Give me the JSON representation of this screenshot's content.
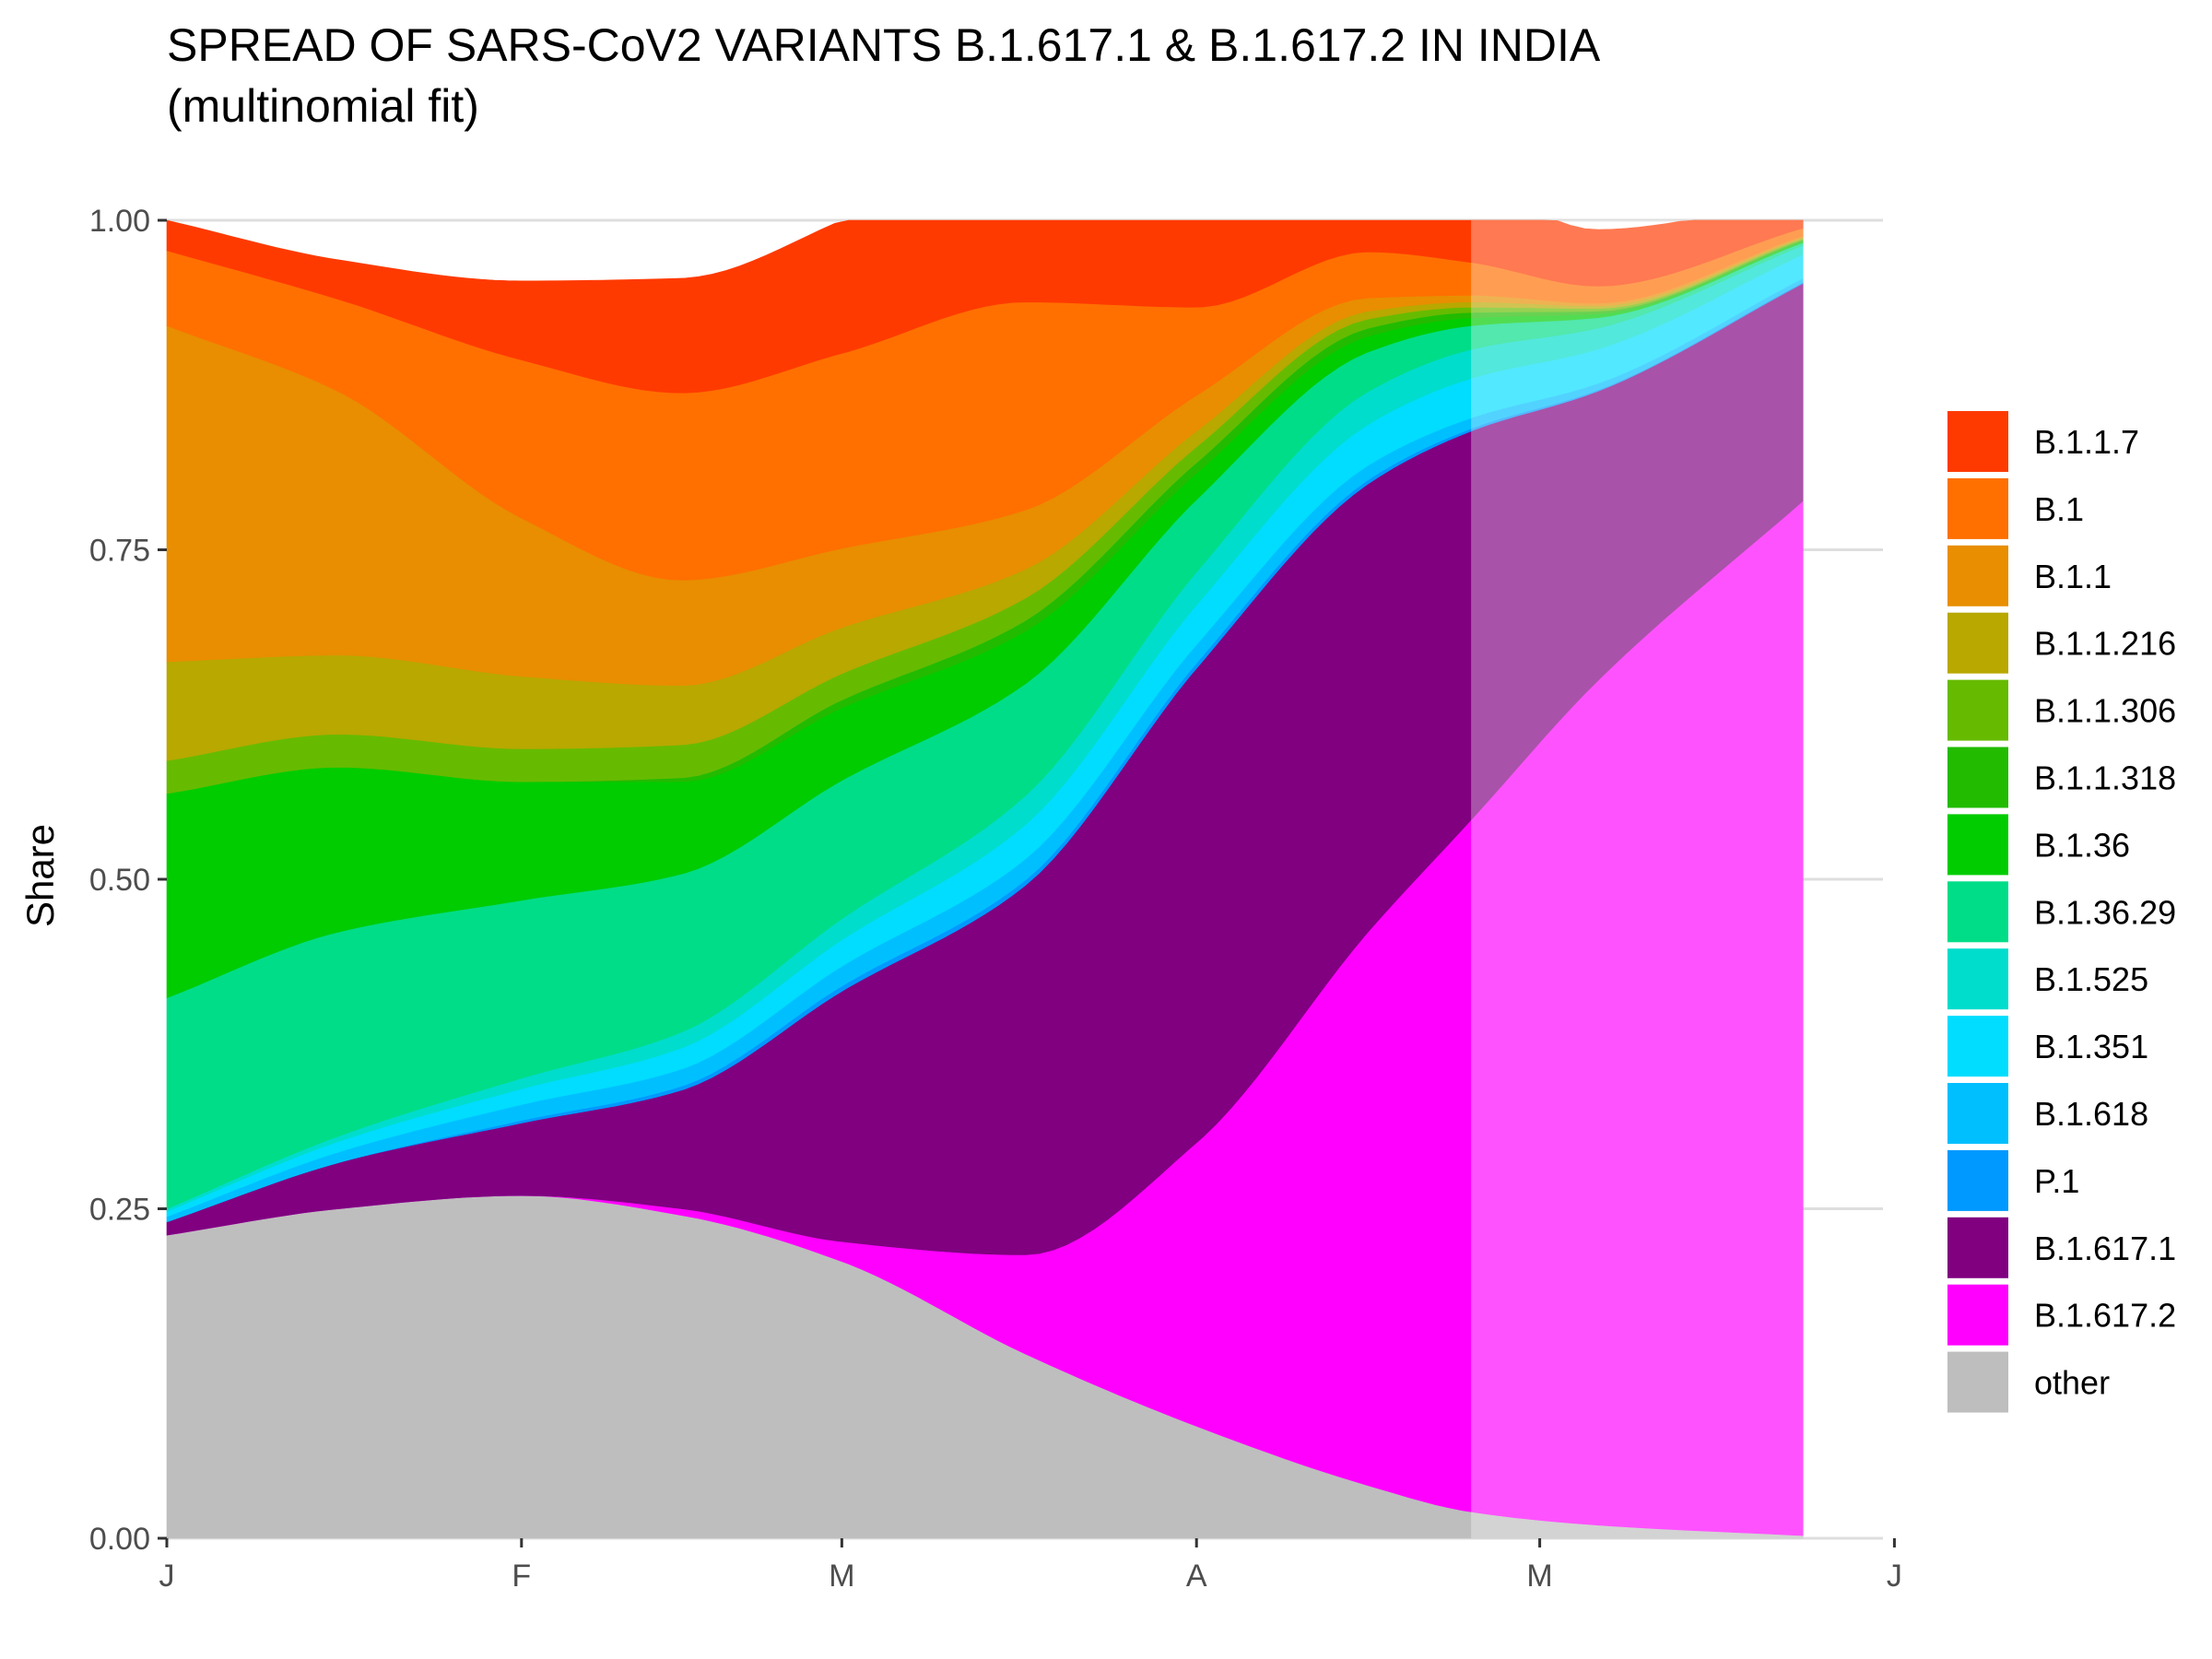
{
  "chart_data": {
    "type": "area",
    "stacked": true,
    "normalized": true,
    "title_line1": "SPREAD OF SARS-CoV2 VARIANTS B.1.617.1 & B.1.617.2 IN INDIA",
    "title_line2": "(multinomial fit)",
    "xlabel": "",
    "ylabel": "Share",
    "xlim": [
      0,
      150
    ],
    "ylim": [
      0,
      1
    ],
    "y_ticks": [
      0,
      0.25,
      0.5,
      0.75,
      1
    ],
    "y_tick_labels": [
      "0.00",
      "0.25",
      "0.50",
      "0.75",
      "1.00"
    ],
    "x_ticks": [
      0,
      31,
      59,
      90,
      120,
      151
    ],
    "x_tick_labels": [
      "J",
      "F",
      "M",
      "A",
      "M",
      "J"
    ],
    "grid": "horizontal",
    "legend_position": "right",
    "projection_shading": {
      "from_x": 114,
      "to_x": 143
    },
    "x": [
      0,
      15,
      31,
      45,
      59,
      75,
      90,
      105,
      114,
      125,
      143
    ],
    "series": [
      {
        "name": "other",
        "color": "#BEBEBE",
        "values": [
          0.23,
          0.25,
          0.26,
          0.245,
          0.21,
          0.14,
          0.085,
          0.04,
          0.02,
          0.01,
          0.002
        ]
      },
      {
        "name": "B.1.617.2",
        "color": "#FF00FF",
        "values": [
          0.0,
          0.0,
          0.0,
          0.005,
          0.015,
          0.075,
          0.215,
          0.42,
          0.525,
          0.64,
          0.785
        ]
      },
      {
        "name": "B.1.617.1",
        "color": "#800080",
        "values": [
          0.01,
          0.035,
          0.055,
          0.09,
          0.19,
          0.28,
          0.36,
          0.34,
          0.295,
          0.22,
          0.165
        ]
      },
      {
        "name": "P.1",
        "color": "#0099FF",
        "values": [
          0.0,
          0.0,
          0.002,
          0.003,
          0.004,
          0.004,
          0.004,
          0.003,
          0.002,
          0.001,
          0.001
        ]
      },
      {
        "name": "B.1.618",
        "color": "#00BFFF",
        "values": [
          0.004,
          0.008,
          0.012,
          0.013,
          0.015,
          0.016,
          0.014,
          0.011,
          0.008,
          0.005,
          0.003
        ]
      },
      {
        "name": "B.1.351",
        "color": "#00DDFF",
        "values": [
          0.004,
          0.008,
          0.012,
          0.016,
          0.02,
          0.026,
          0.03,
          0.031,
          0.03,
          0.026,
          0.018
        ]
      },
      {
        "name": "B.1.525",
        "color": "#00DDCC",
        "values": [
          0.002,
          0.004,
          0.008,
          0.012,
          0.016,
          0.022,
          0.025,
          0.025,
          0.022,
          0.016,
          0.007
        ]
      },
      {
        "name": "B.1.36.29",
        "color": "#00DD88",
        "values": [
          0.16,
          0.155,
          0.135,
          0.12,
          0.105,
          0.085,
          0.055,
          0.03,
          0.018,
          0.008,
          0.002
        ]
      },
      {
        "name": "B.1.36",
        "color": "#00CC00",
        "values": [
          0.155,
          0.125,
          0.09,
          0.07,
          0.055,
          0.04,
          0.02,
          0.012,
          0.006,
          0.003,
          0.001
        ]
      },
      {
        "name": "B.1.1.318",
        "color": "#22BB00",
        "values": [
          0.0,
          0.0,
          0.0,
          0.003,
          0.006,
          0.008,
          0.008,
          0.006,
          0.004,
          0.002,
          0.001
        ]
      },
      {
        "name": "B.1.1.306",
        "color": "#66BB00",
        "values": [
          0.025,
          0.025,
          0.025,
          0.025,
          0.02,
          0.017,
          0.012,
          0.007,
          0.004,
          0.002,
          0.001
        ]
      },
      {
        "name": "B.1.1.216",
        "color": "#B8A800",
        "values": [
          0.075,
          0.06,
          0.055,
          0.045,
          0.035,
          0.022,
          0.012,
          0.006,
          0.004,
          0.002,
          0.001
        ]
      },
      {
        "name": "B.1.1",
        "color": "#E88E00",
        "values": [
          0.255,
          0.2,
          0.12,
          0.08,
          0.06,
          0.045,
          0.027,
          0.01,
          0.005,
          0.002,
          0.001
        ]
      },
      {
        "name": "B.1",
        "color": "#FF7000",
        "values": [
          0.057,
          0.07,
          0.12,
          0.142,
          0.148,
          0.158,
          0.067,
          0.035,
          0.025,
          0.013,
          0.006
        ]
      },
      {
        "name": "B.1.1.7",
        "color": "#FF3A00",
        "values": [
          0.023,
          0.03,
          0.06,
          0.087,
          0.101,
          0.133,
          0.11,
          0.069,
          0.061,
          0.043,
          0.023
        ]
      }
    ]
  }
}
